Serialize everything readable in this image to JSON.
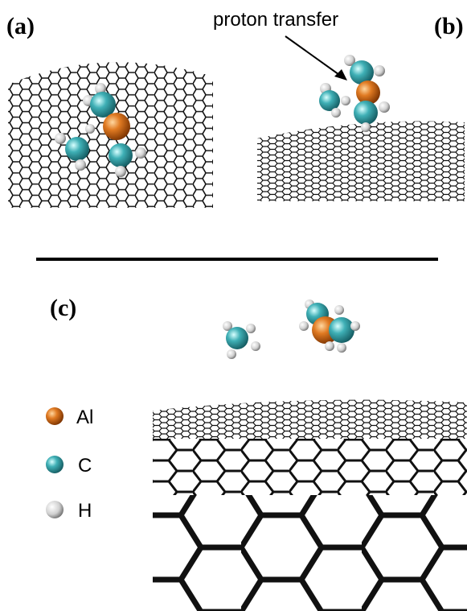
{
  "panels": [
    {
      "label": "(a)"
    },
    {
      "label": "(b)",
      "annotation": "proton transfer"
    },
    {
      "label": "(c)"
    }
  ],
  "legend": [
    {
      "label": "Al"
    },
    {
      "label": "C"
    },
    {
      "label": "H"
    }
  ]
}
